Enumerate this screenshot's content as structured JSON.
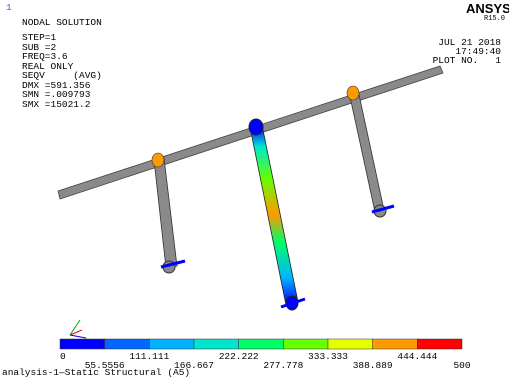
{
  "viewport": {
    "window_number": "1"
  },
  "header": {
    "title": "NODAL SOLUTION",
    "info": [
      "STEP=1",
      "SUB =2",
      "FREQ=3.6",
      "REAL ONLY",
      "SEQV     (AVG)",
      "DMX =591.356",
      "SMN =.009793",
      "SMX =15021.2"
    ],
    "brand": "ANSYS",
    "version": "R15.0",
    "date": "JUL 21 2018",
    "time": "17:49:40",
    "plot_label": "PLOT NO.   1"
  },
  "legend": {
    "colors": [
      "#0000ff",
      "#0066ff",
      "#00b3ff",
      "#00e6cc",
      "#00ff66",
      "#66ff00",
      "#e6ff00",
      "#ff9900",
      "#ff0000"
    ],
    "ticks": [
      0,
      55.5556,
      111.111,
      166.667,
      222.222,
      277.778,
      333.333,
      388.889,
      444.444,
      500
    ]
  },
  "footer": "analysis-1—Static Structural (A5)"
}
